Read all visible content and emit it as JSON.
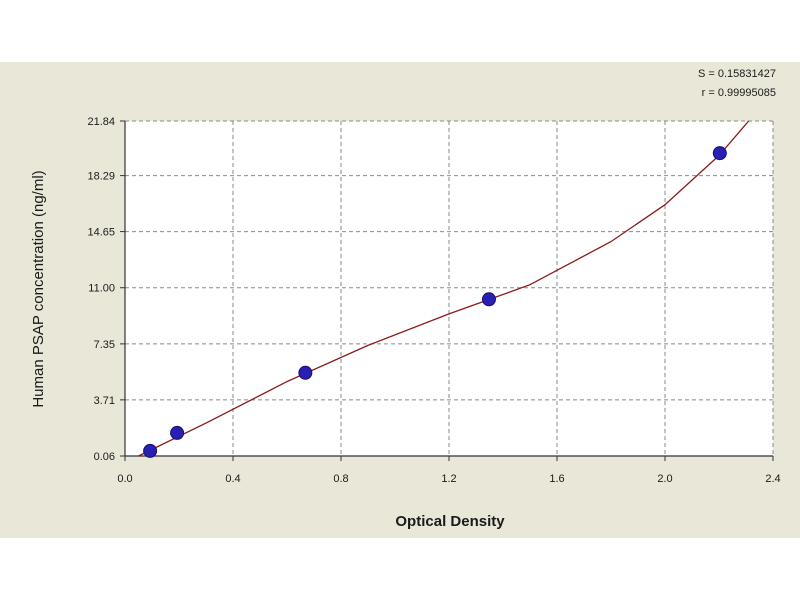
{
  "chart_data": {
    "type": "scatter",
    "title": "",
    "xlabel": "Optical Density",
    "ylabel": "Human PSAP concentration (ng/ml)",
    "xlim": [
      0.0,
      2.4
    ],
    "ylim": [
      0.06,
      21.84
    ],
    "xticks": [
      0.0,
      0.4,
      0.8,
      1.2,
      1.6,
      2.0,
      2.4
    ],
    "xtick_labels": [
      "0.0",
      "0.4",
      "0.8",
      "1.2",
      "1.6",
      "2.0",
      "2.4"
    ],
    "yticks": [
      0.06,
      3.71,
      7.35,
      11.0,
      14.65,
      18.29,
      21.84
    ],
    "ytick_labels": [
      "0.06",
      "3.71",
      "7.35",
      "11.00",
      "14.65",
      "18.29",
      "21.84"
    ],
    "grid": true,
    "stats": {
      "s_label": "S = 0.15831427",
      "r_label": "r = 0.99995085"
    },
    "points": [
      {
        "x": 0.093,
        "y": 0.39
      },
      {
        "x": 0.193,
        "y": 1.56
      },
      {
        "x": 0.668,
        "y": 5.47
      },
      {
        "x": 1.348,
        "y": 10.25
      },
      {
        "x": 2.203,
        "y": 19.75
      }
    ],
    "fit_curve": {
      "x": [
        0.05,
        0.3,
        0.6,
        0.9,
        1.2,
        1.5,
        1.8,
        2.0,
        2.2,
        2.31
      ],
      "y": [
        0.06,
        2.2,
        4.9,
        7.25,
        9.3,
        11.2,
        14.0,
        16.4,
        19.6,
        21.84
      ]
    },
    "colors": {
      "point_fill": "#2a1fb3",
      "point_stroke": "#160d6e",
      "curve": "#8b1a1a",
      "grid": "#8a8a8a",
      "plot_bg": "#ffffff",
      "panel_bg": "#e9e8d8"
    }
  }
}
